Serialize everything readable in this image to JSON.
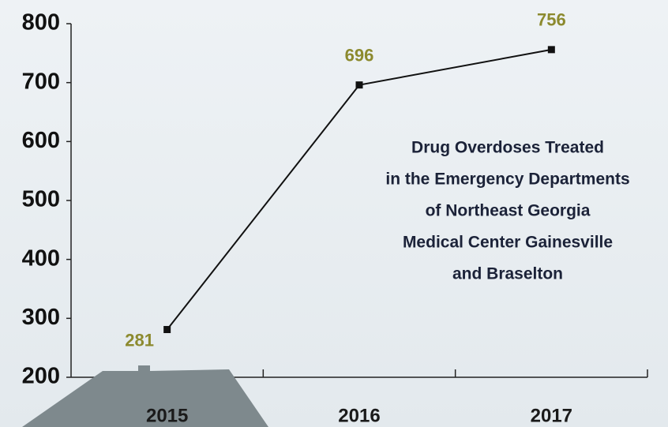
{
  "chart_data": {
    "type": "line",
    "title": [
      "Drug Overdoses Treated",
      "in the Emergency Departments",
      "of Northeast Georgia",
      "Medical Center Gainesville",
      "and Braselton"
    ],
    "categories": [
      "2015",
      "2016",
      "2017"
    ],
    "values": [
      281,
      696,
      756
    ],
    "color": "#111111",
    "ylim": [
      200,
      800
    ],
    "yticks": [
      200,
      300,
      400,
      500,
      600,
      700,
      800
    ],
    "grid": false
  }
}
